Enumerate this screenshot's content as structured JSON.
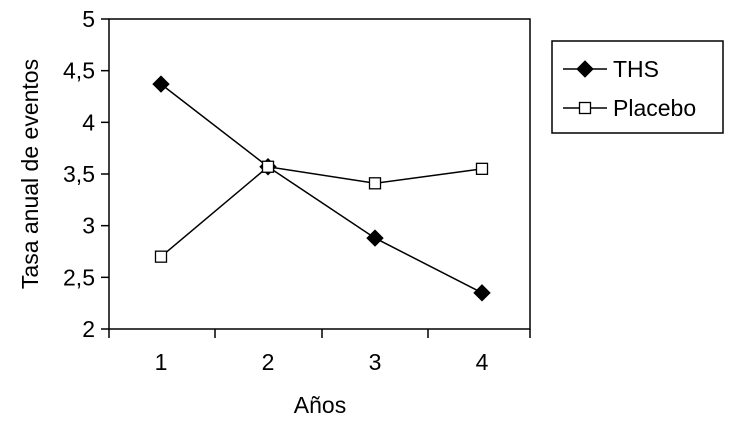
{
  "chart_data": {
    "type": "line",
    "categories": [
      "1",
      "2",
      "3",
      "4"
    ],
    "x": [
      1,
      2,
      3,
      4
    ],
    "ylabel": "Tasa anual de eventos",
    "xlabel": "Años",
    "ylim": [
      2,
      5
    ],
    "yticks": [
      "2",
      "2,5",
      "3",
      "3,5",
      "4",
      "4,5",
      "5"
    ],
    "ytick_values": [
      2,
      2.5,
      3,
      3.5,
      4,
      4.5,
      5
    ],
    "grid": false,
    "legend_position": "right",
    "series": [
      {
        "name": "THS",
        "values": [
          4.37,
          3.57,
          2.88,
          2.35
        ],
        "marker": "filled-diamond",
        "color": "#000000"
      },
      {
        "name": "Placebo",
        "values": [
          2.7,
          3.57,
          3.41,
          3.55
        ],
        "marker": "open-square",
        "color": "#000000"
      }
    ]
  }
}
